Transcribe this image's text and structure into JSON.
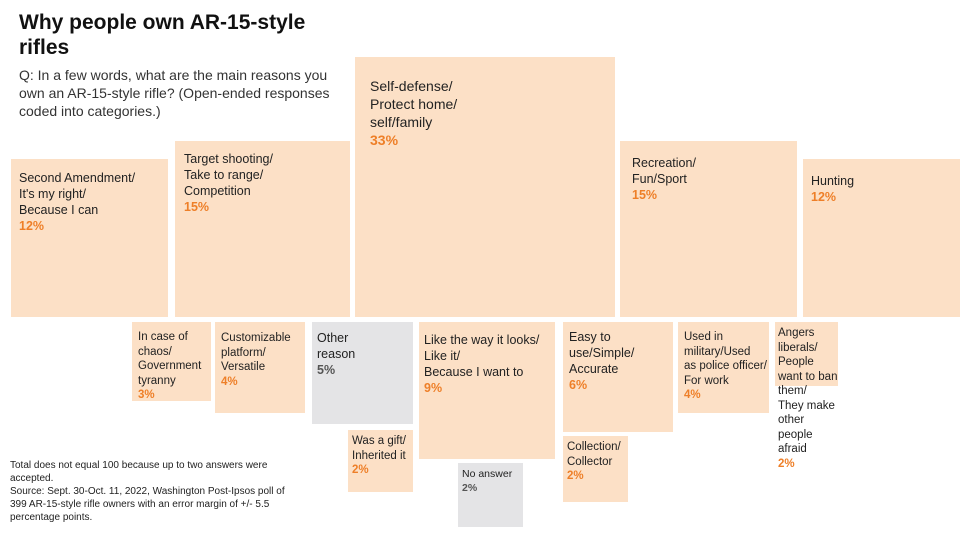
{
  "title": "Why people own AR-15-style rifles",
  "question": "Q: In a few words, what are the main reasons you own an AR-15-style rifle? (Open-ended responses coded into categories.)",
  "notes": [
    "Total does not equal 100 because up to two answers were accepted.",
    "Source: Sept. 30-Oct. 11, 2022, Washington Post-Ipsos poll of 399 AR-15-style rifle owners with an error margin of +/- 5.5 percentage points."
  ],
  "colors": {
    "tile": "#fce0c6",
    "tile_other": "#e4e4e6",
    "pct": "#ee7f28",
    "pct_other": "#555555"
  },
  "chart_data": {
    "type": "treemap",
    "title": "Why people own AR-15-style rifles",
    "unit": "%",
    "categories": [
      {
        "label": "Self-defense/\nProtect home/\nself/family",
        "value": 33,
        "pct_label": "33%"
      },
      {
        "label": "Recreation/\nFun/Sport",
        "value": 15,
        "pct_label": "15%"
      },
      {
        "label": "Target shooting/\nTake to range/\nCompetition",
        "value": 15,
        "pct_label": "15%"
      },
      {
        "label": "Second Amendment/\nIt's my right/\nBecause I can",
        "value": 12,
        "pct_label": "12%"
      },
      {
        "label": "Hunting",
        "value": 12,
        "pct_label": "12%"
      },
      {
        "label": "Like the way it looks/\nLike it/\nBecause I want to",
        "value": 9,
        "pct_label": "9%"
      },
      {
        "label": "Easy to\nuse/Simple/\nAccurate",
        "value": 6,
        "pct_label": "6%"
      },
      {
        "label": "Other\nreason",
        "value": 5,
        "pct_label": "5%"
      },
      {
        "label": "Customizable\nplatform/\nVersatile",
        "value": 4,
        "pct_label": "4%"
      },
      {
        "label": "Used in\nmilitary/Used\nas police officer/\nFor work",
        "value": 4,
        "pct_label": "4%"
      },
      {
        "label": "In case of\nchaos/\nGovernment\ntyranny",
        "value": 3,
        "pct_label": "3%"
      },
      {
        "label": "Was a gift/\nInherited it",
        "value": 2,
        "pct_label": "2%"
      },
      {
        "label": "Collection/\nCollector",
        "value": 2,
        "pct_label": "2%"
      },
      {
        "label": "No answer",
        "value": 2,
        "pct_label": "2%"
      },
      {
        "label": "Angers liberals/\nPeople want to ban them/\nThey make other people\nafraid",
        "value": 2,
        "pct_label": "2%"
      }
    ]
  }
}
